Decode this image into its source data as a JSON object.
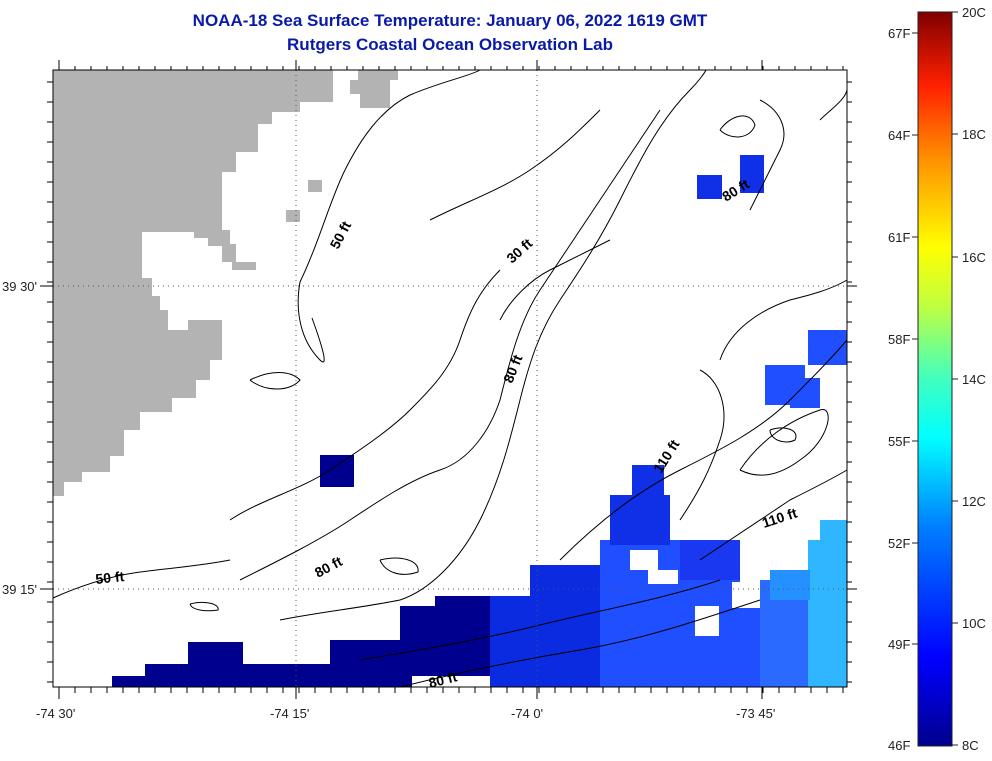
{
  "header": {
    "title": "NOAA-18 Sea Surface Temperature:  January 06, 2022 1619 GMT",
    "subtitle": "Rutgers Coastal Ocean Observation Lab"
  },
  "axes": {
    "x_ticks": [
      {
        "label": "-74 30'",
        "value": -74.5
      },
      {
        "label": "-74 15'",
        "value": -74.25
      },
      {
        "label": "-74 0'",
        "value": -74.0
      },
      {
        "label": "-73 45'",
        "value": -73.75
      }
    ],
    "y_ticks": [
      {
        "label": "39 30'",
        "value": 39.5
      },
      {
        "label": "39 15'",
        "value": 39.25
      }
    ],
    "lon_range": [
      -74.505,
      -73.685
    ],
    "lat_range": [
      39.166,
      39.676
    ]
  },
  "contour_labels": [
    "50 ft",
    "30 ft",
    "80 ft",
    "80 ft",
    "110 ft",
    "110 ft",
    "50 ft",
    "80 ft",
    "80 ft"
  ],
  "colorbar": {
    "fahrenheit": [
      "67F",
      "64F",
      "61F",
      "58F",
      "55F",
      "52F",
      "49F",
      "46F"
    ],
    "celsius": [
      "20C",
      "18C",
      "16C",
      "14C",
      "12C",
      "10C",
      "8C"
    ],
    "min_c": 8,
    "max_c": 20
  },
  "colors": {
    "title": "#0a1aa8",
    "land": "#b3b3b3",
    "sst_cold": "#00008f",
    "sst_mid": "#1f4fff",
    "sst_warm": "#2fb6ff"
  }
}
